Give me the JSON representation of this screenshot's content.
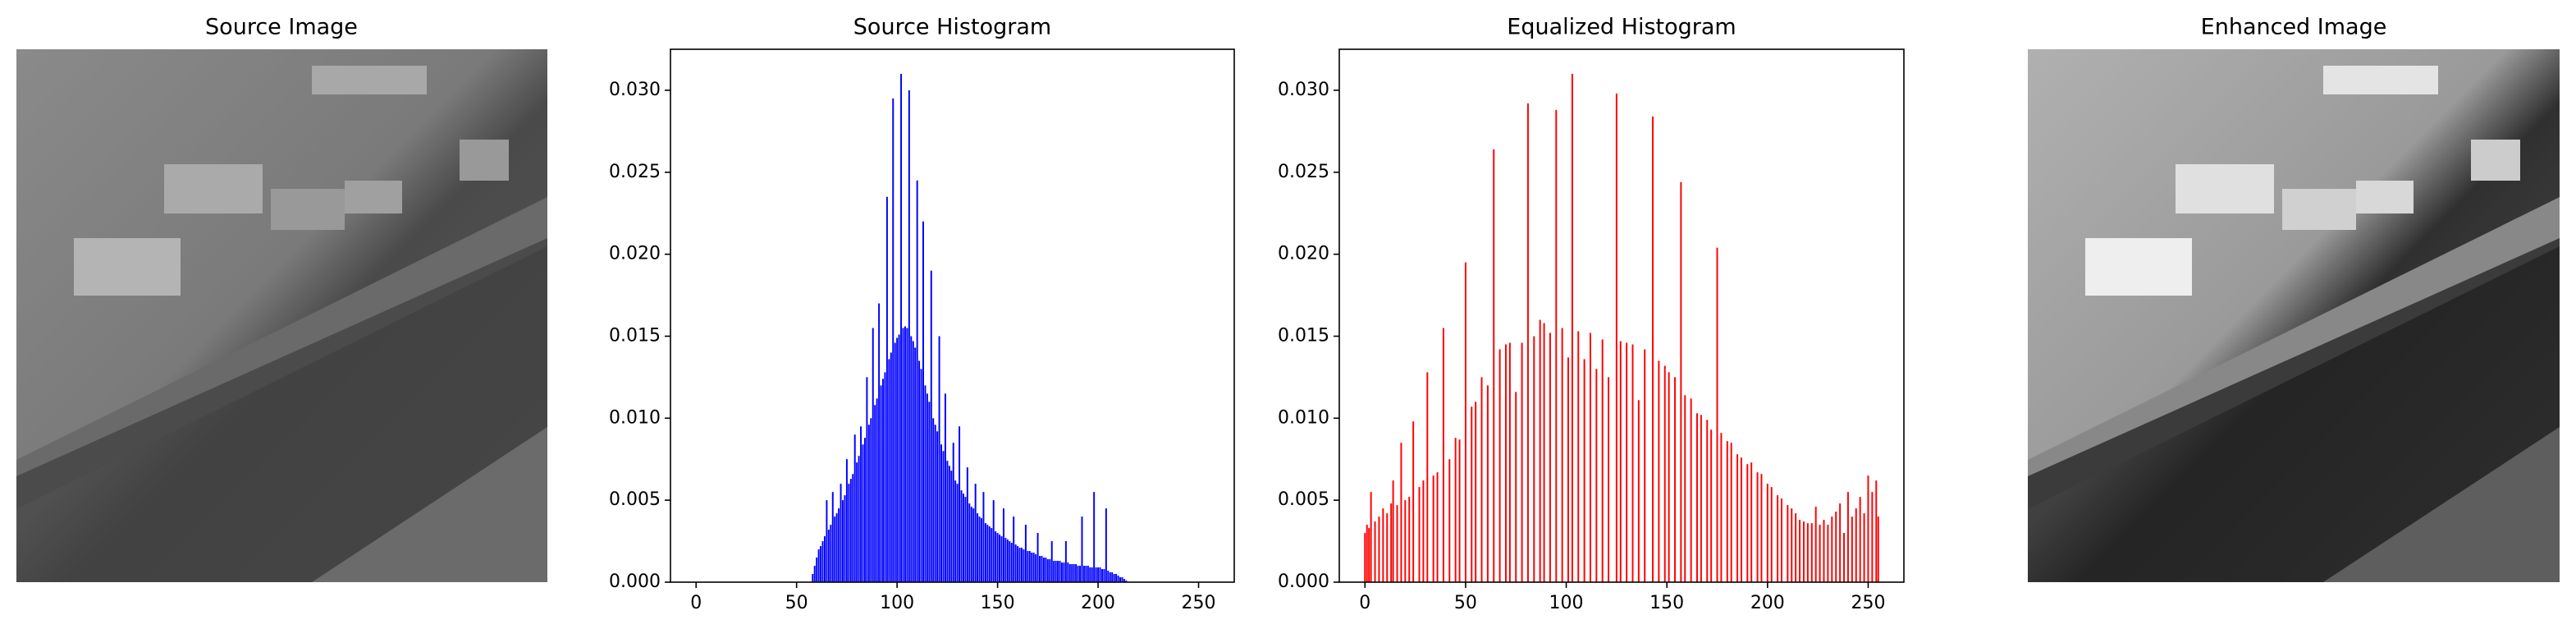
{
  "images": [
    {
      "title": "Source Image"
    },
    {
      "title": "Enhanced Image"
    }
  ],
  "chart_data": [
    {
      "type": "bar",
      "title": "Source Histogram",
      "color": "#0000ff",
      "x": [
        58,
        59,
        60,
        61,
        62,
        63,
        64,
        65,
        66,
        67,
        68,
        69,
        70,
        71,
        72,
        73,
        74,
        75,
        76,
        77,
        78,
        79,
        80,
        81,
        82,
        83,
        84,
        85,
        86,
        87,
        88,
        89,
        90,
        91,
        92,
        93,
        94,
        95,
        96,
        97,
        98,
        99,
        100,
        101,
        102,
        103,
        104,
        105,
        106,
        107,
        108,
        109,
        110,
        111,
        112,
        113,
        114,
        115,
        116,
        117,
        118,
        119,
        120,
        121,
        122,
        123,
        124,
        125,
        126,
        127,
        128,
        129,
        130,
        131,
        132,
        133,
        134,
        135,
        136,
        137,
        138,
        139,
        140,
        141,
        142,
        143,
        144,
        145,
        146,
        147,
        148,
        149,
        150,
        151,
        152,
        153,
        154,
        155,
        156,
        157,
        158,
        159,
        160,
        161,
        162,
        163,
        164,
        165,
        166,
        167,
        168,
        169,
        170,
        171,
        172,
        173,
        174,
        175,
        176,
        177,
        178,
        179,
        180,
        181,
        182,
        183,
        184,
        185,
        186,
        187,
        188,
        189,
        190,
        191,
        192,
        193,
        194,
        195,
        196,
        197,
        198,
        199,
        200,
        201,
        202,
        203,
        204,
        205,
        206,
        207,
        208,
        209,
        210,
        211,
        212,
        213,
        214
      ],
      "values": [
        0.0005,
        0.001,
        0.0015,
        0.002,
        0.0022,
        0.0025,
        0.0028,
        0.005,
        0.0032,
        0.0035,
        0.0055,
        0.004,
        0.0042,
        0.0045,
        0.006,
        0.005,
        0.0053,
        0.0075,
        0.006,
        0.0063,
        0.0066,
        0.009,
        0.0073,
        0.0077,
        0.0095,
        0.0084,
        0.0088,
        0.0125,
        0.0096,
        0.01,
        0.0155,
        0.0108,
        0.0112,
        0.017,
        0.012,
        0.0124,
        0.0128,
        0.0235,
        0.0136,
        0.014,
        0.0295,
        0.0146,
        0.0149,
        0.0151,
        0.031,
        0.0155,
        0.0156,
        0.0155,
        0.03,
        0.015,
        0.0147,
        0.0143,
        0.0245,
        0.0135,
        0.013,
        0.022,
        0.012,
        0.0115,
        0.011,
        0.019,
        0.01,
        0.0096,
        0.0092,
        0.015,
        0.0084,
        0.008,
        0.0115,
        0.0074,
        0.0071,
        0.0068,
        0.0085,
        0.0062,
        0.006,
        0.0095,
        0.0056,
        0.0054,
        0.0052,
        0.007,
        0.0048,
        0.0046,
        0.0045,
        0.006,
        0.0042,
        0.004,
        0.0039,
        0.0055,
        0.0036,
        0.0035,
        0.0034,
        0.0033,
        0.005,
        0.0031,
        0.003,
        0.0029,
        0.0028,
        0.0045,
        0.0027,
        0.0026,
        0.0025,
        0.0024,
        0.004,
        0.0023,
        0.0022,
        0.0021,
        0.0021,
        0.002,
        0.0035,
        0.0019,
        0.0019,
        0.0018,
        0.0018,
        0.0017,
        0.003,
        0.0016,
        0.0016,
        0.0015,
        0.0015,
        0.0014,
        0.0014,
        0.0025,
        0.0013,
        0.0013,
        0.0013,
        0.0013,
        0.0012,
        0.0012,
        0.0025,
        0.0012,
        0.0011,
        0.0011,
        0.0011,
        0.0011,
        0.001,
        0.001,
        0.004,
        0.001,
        0.001,
        0.001,
        0.0009,
        0.0009,
        0.0055,
        0.0009,
        0.0009,
        0.0009,
        0.0008,
        0.0008,
        0.0045,
        0.0007,
        0.0006,
        0.0006,
        0.0005,
        0.0005,
        0.0004,
        0.0003,
        0.0003,
        0.0002,
        0.0001
      ],
      "xlim": [
        -12.75,
        267.75
      ],
      "xticks": [
        0,
        50,
        100,
        150,
        200,
        250
      ],
      "ylim": [
        0,
        0.0325
      ],
      "yticks": [
        {
          "value": 0,
          "label": "0.000"
        },
        0.005,
        {
          "value": 0.01,
          "label": "0.010"
        },
        0.015,
        {
          "value": 0.02,
          "label": "0.020"
        },
        0.025,
        {
          "value": 0.03,
          "label": "0.030"
        }
      ]
    },
    {
      "type": "bar",
      "title": "Equalized Histogram",
      "color": "#ff0000",
      "x": [
        0,
        1,
        2,
        3,
        5,
        7,
        9,
        11,
        13,
        14,
        16,
        18,
        20,
        22,
        24,
        27,
        29,
        31,
        34,
        36,
        39,
        42,
        45,
        47,
        50,
        53,
        55,
        58,
        61,
        64,
        67,
        70,
        72,
        75,
        78,
        81,
        84,
        87,
        89,
        92,
        95,
        98,
        101,
        103,
        106,
        109,
        112,
        115,
        118,
        121,
        125,
        127,
        130,
        133,
        136,
        139,
        143,
        146,
        149,
        151,
        154,
        157,
        159,
        162,
        165,
        167,
        170,
        172,
        175,
        177,
        180,
        182,
        185,
        187,
        190,
        192,
        195,
        197,
        200,
        202,
        205,
        207,
        210,
        212,
        214,
        216,
        218,
        220,
        222,
        224,
        226,
        228,
        230,
        232,
        234,
        236,
        238,
        240,
        242,
        244,
        246,
        248,
        250,
        252,
        254,
        255
      ],
      "values": [
        0.003,
        0.0035,
        0.0033,
        0.0055,
        0.0037,
        0.004,
        0.0045,
        0.0042,
        0.0048,
        0.0062,
        0.0047,
        0.0085,
        0.005,
        0.0052,
        0.0098,
        0.0058,
        0.0062,
        0.0128,
        0.0065,
        0.0067,
        0.0155,
        0.0075,
        0.0088,
        0.0087,
        0.0195,
        0.0107,
        0.011,
        0.0125,
        0.012,
        0.0264,
        0.0142,
        0.0145,
        0.0146,
        0.0116,
        0.0146,
        0.0292,
        0.015,
        0.016,
        0.0158,
        0.0152,
        0.0288,
        0.0155,
        0.0137,
        0.031,
        0.0153,
        0.0136,
        0.0152,
        0.013,
        0.0148,
        0.0125,
        0.0298,
        0.0147,
        0.0146,
        0.0145,
        0.0111,
        0.0142,
        0.0284,
        0.0135,
        0.0132,
        0.0128,
        0.0125,
        0.0244,
        0.0114,
        0.0112,
        0.0103,
        0.0102,
        0.0099,
        0.0093,
        0.0204,
        0.0091,
        0.0086,
        0.0085,
        0.0078,
        0.0076,
        0.0072,
        0.0073,
        0.0067,
        0.0066,
        0.006,
        0.0058,
        0.0053,
        0.0051,
        0.0047,
        0.0045,
        0.0042,
        0.0038,
        0.0037,
        0.0036,
        0.0036,
        0.0046,
        0.0035,
        0.0038,
        0.0035,
        0.004,
        0.0043,
        0.0048,
        0.003,
        0.0055,
        0.004,
        0.0045,
        0.0052,
        0.0042,
        0.0065,
        0.0055,
        0.0062,
        0.004
      ],
      "xlim": [
        -12.75,
        267.75
      ],
      "xticks": [
        0,
        50,
        100,
        150,
        200,
        250
      ],
      "ylim": [
        0,
        0.0325
      ],
      "yticks": [
        {
          "value": 0,
          "label": "0.000"
        },
        0.005,
        {
          "value": 0.01,
          "label": "0.010"
        },
        0.015,
        {
          "value": 0.02,
          "label": "0.020"
        },
        0.025,
        {
          "value": 0.03,
          "label": "0.030"
        }
      ]
    }
  ]
}
